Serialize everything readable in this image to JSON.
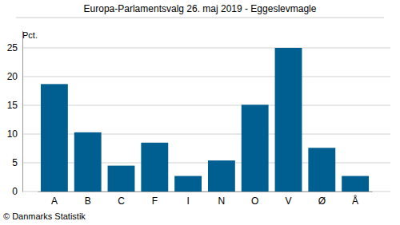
{
  "chart_data": {
    "type": "bar",
    "title": "Europa-Parlamentsvalg 26. maj 2019 - Eggeslevmagle",
    "y_label": "Pct.",
    "source": "© Danmarks Statistik",
    "categories": [
      "A",
      "B",
      "C",
      "F",
      "I",
      "N",
      "O",
      "V",
      "Ø",
      "Å"
    ],
    "values": [
      18.7,
      10.3,
      4.5,
      8.5,
      2.7,
      5.4,
      15.1,
      25.0,
      7.6,
      2.7
    ],
    "color": "#005f91",
    "ylim": [
      0,
      28
    ],
    "yticks": [
      0,
      5,
      10,
      15,
      20,
      25
    ],
    "grid": true
  }
}
